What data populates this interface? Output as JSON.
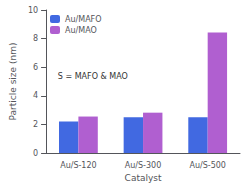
{
  "chart_data": {
    "type": "bar",
    "categories": [
      "Au/S-120",
      "Au/S-300",
      "Au/S-500"
    ],
    "series": [
      {
        "name": "Au/MAFO",
        "color": "#4169e1",
        "values": [
          2.2,
          2.5,
          2.5
        ]
      },
      {
        "name": "Au/MAO",
        "color": "#b05fd0",
        "values": [
          2.55,
          2.82,
          8.42
        ]
      }
    ],
    "xlabel": "Catalyst",
    "ylabel": "Particle size (nm)",
    "annotation": "S = MAFO & MAO",
    "ylim": [
      0,
      10
    ],
    "yticks": [
      0,
      2,
      4,
      6,
      8,
      10
    ],
    "grid": false,
    "legend": "upper left"
  }
}
